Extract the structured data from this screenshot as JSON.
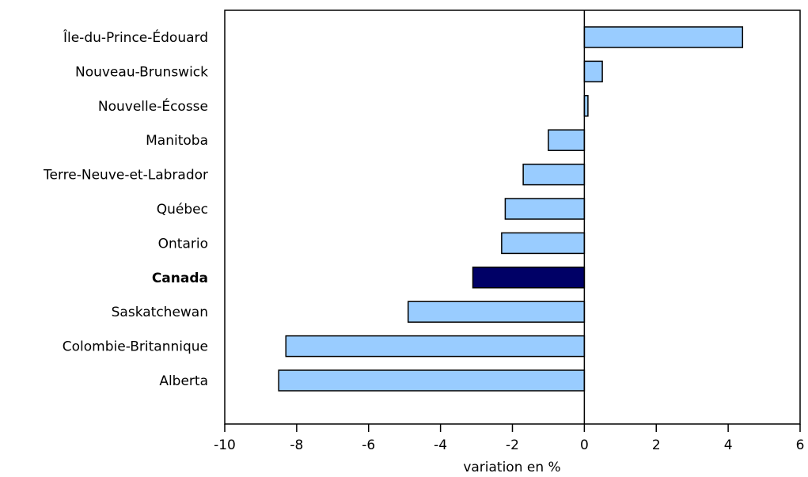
{
  "chart_data": {
    "type": "bar",
    "orientation": "horizontal",
    "categories": [
      "Île-du-Prince-Édouard",
      "Nouveau-Brunswick",
      "Nouvelle-Écosse",
      "Manitoba",
      "Terre-Neuve-et-Labrador",
      "Québec",
      "Ontario",
      "Canada",
      "Saskatchewan",
      "Colombie-Britannique",
      "Alberta"
    ],
    "values": [
      4.4,
      0.5,
      0.1,
      -1.0,
      -1.7,
      -2.2,
      -2.3,
      -3.1,
      -4.9,
      -8.3,
      -8.5
    ],
    "highlight": "Canada",
    "xlabel": "variation en %",
    "ylabel": "",
    "title": "",
    "xlim": [
      -10,
      6
    ],
    "xticks": [
      "-10",
      "-8",
      "-6",
      "-4",
      "-2",
      "0",
      "2",
      "4",
      "6"
    ],
    "grid": false,
    "legend": "none",
    "colors": {
      "bar": "#99ccff",
      "highlight": "#000066",
      "outline": "#000000"
    }
  }
}
